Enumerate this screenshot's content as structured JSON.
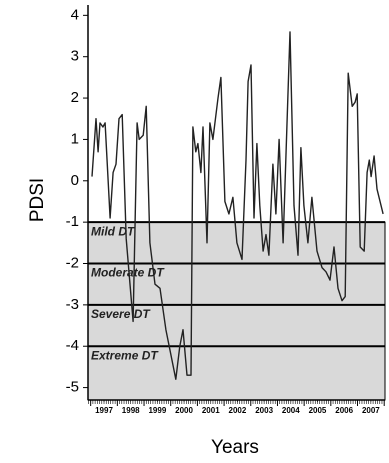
{
  "chart_data": {
    "type": "line",
    "y_label": "PDSI",
    "x_label": "Years",
    "x": [
      1997.05,
      1997.2,
      1997.28,
      1997.35,
      1997.46,
      1997.54,
      1997.73,
      1997.84,
      1997.95,
      1998.06,
      1998.18,
      1998.33,
      1998.59,
      1998.74,
      1998.82,
      1998.97,
      1999.08,
      1999.22,
      1999.41,
      1999.6,
      1999.82,
      2000.19,
      2000.34,
      2000.46,
      2000.61,
      2000.76,
      2000.83,
      2000.94,
      2001.02,
      2001.13,
      2001.21,
      2001.36,
      2001.47,
      2001.58,
      2001.77,
      2001.88,
      2002.03,
      2002.18,
      2002.33,
      2002.48,
      2002.67,
      2002.82,
      2002.9,
      2003.01,
      2003.12,
      2003.23,
      2003.34,
      2003.46,
      2003.57,
      2003.68,
      2003.83,
      2003.94,
      2004.06,
      2004.21,
      2004.47,
      2004.62,
      2004.77,
      2004.88,
      2004.99,
      2005.14,
      2005.29,
      2005.48,
      2005.67,
      2005.82,
      2005.97,
      2006.12,
      2006.27,
      2006.42,
      2006.54,
      2006.65,
      2006.8,
      2006.91,
      2006.99,
      2007.1,
      2007.25,
      2007.36,
      2007.44,
      2007.51,
      2007.62,
      2007.73,
      2007.96
    ],
    "series": [
      {
        "name": "PDSI",
        "color": "#222222",
        "values": [
          0.1,
          1.5,
          0.7,
          1.4,
          1.3,
          1.4,
          -0.9,
          0.2,
          0.4,
          1.5,
          1.6,
          -1.4,
          -3.4,
          1.4,
          1.0,
          1.1,
          1.8,
          -1.5,
          -2.5,
          -2.6,
          -3.6,
          -4.8,
          -4.0,
          -3.6,
          -4.7,
          -4.7,
          1.3,
          0.7,
          0.9,
          0.2,
          1.3,
          -1.5,
          1.4,
          1.0,
          2.0,
          2.5,
          -0.5,
          -0.8,
          -0.4,
          -1.5,
          -1.9,
          0.5,
          2.4,
          2.8,
          -0.9,
          0.9,
          -0.6,
          -1.7,
          -1.3,
          -1.8,
          0.4,
          -0.8,
          1.0,
          -1.5,
          3.6,
          -0.6,
          -1.8,
          0.8,
          -0.6,
          -1.5,
          -0.4,
          -1.7,
          -2.1,
          -2.2,
          -2.4,
          -1.6,
          -2.6,
          -2.9,
          -2.8,
          2.6,
          1.8,
          1.9,
          2.1,
          -1.6,
          -1.7,
          0.2,
          0.5,
          0.1,
          0.6,
          -0.2,
          -0.8
        ]
      }
    ],
    "xlim": [
      1996.9,
      2008.03
    ],
    "xticks": [
      {
        "value": 1997.5,
        "label": "1997"
      },
      {
        "value": 1998.5,
        "label": "1998"
      },
      {
        "value": 1999.5,
        "label": "1999"
      },
      {
        "value": 2000.5,
        "label": "2000"
      },
      {
        "value": 2001.5,
        "label": "2001"
      },
      {
        "value": 2002.5,
        "label": "2002"
      },
      {
        "value": 2003.5,
        "label": "2003"
      },
      {
        "value": 2004.5,
        "label": "2004"
      },
      {
        "value": 2005.5,
        "label": "2005"
      },
      {
        "value": 2006.5,
        "label": "2006"
      },
      {
        "value": 2007.5,
        "label": "2007"
      }
    ],
    "ylim": [
      -5.3,
      4.25
    ],
    "yticks": [
      4,
      3,
      2,
      1,
      0,
      -1,
      -2,
      -3,
      -4,
      -5
    ],
    "thresholds": [
      {
        "value": -1,
        "label": "Mild DT"
      },
      {
        "value": -2,
        "label": "Moderate DT"
      },
      {
        "value": -3,
        "label": "Severe DT"
      },
      {
        "value": -4,
        "label": "Extreme DT"
      }
    ],
    "shade_color": "#d9d9d9"
  }
}
